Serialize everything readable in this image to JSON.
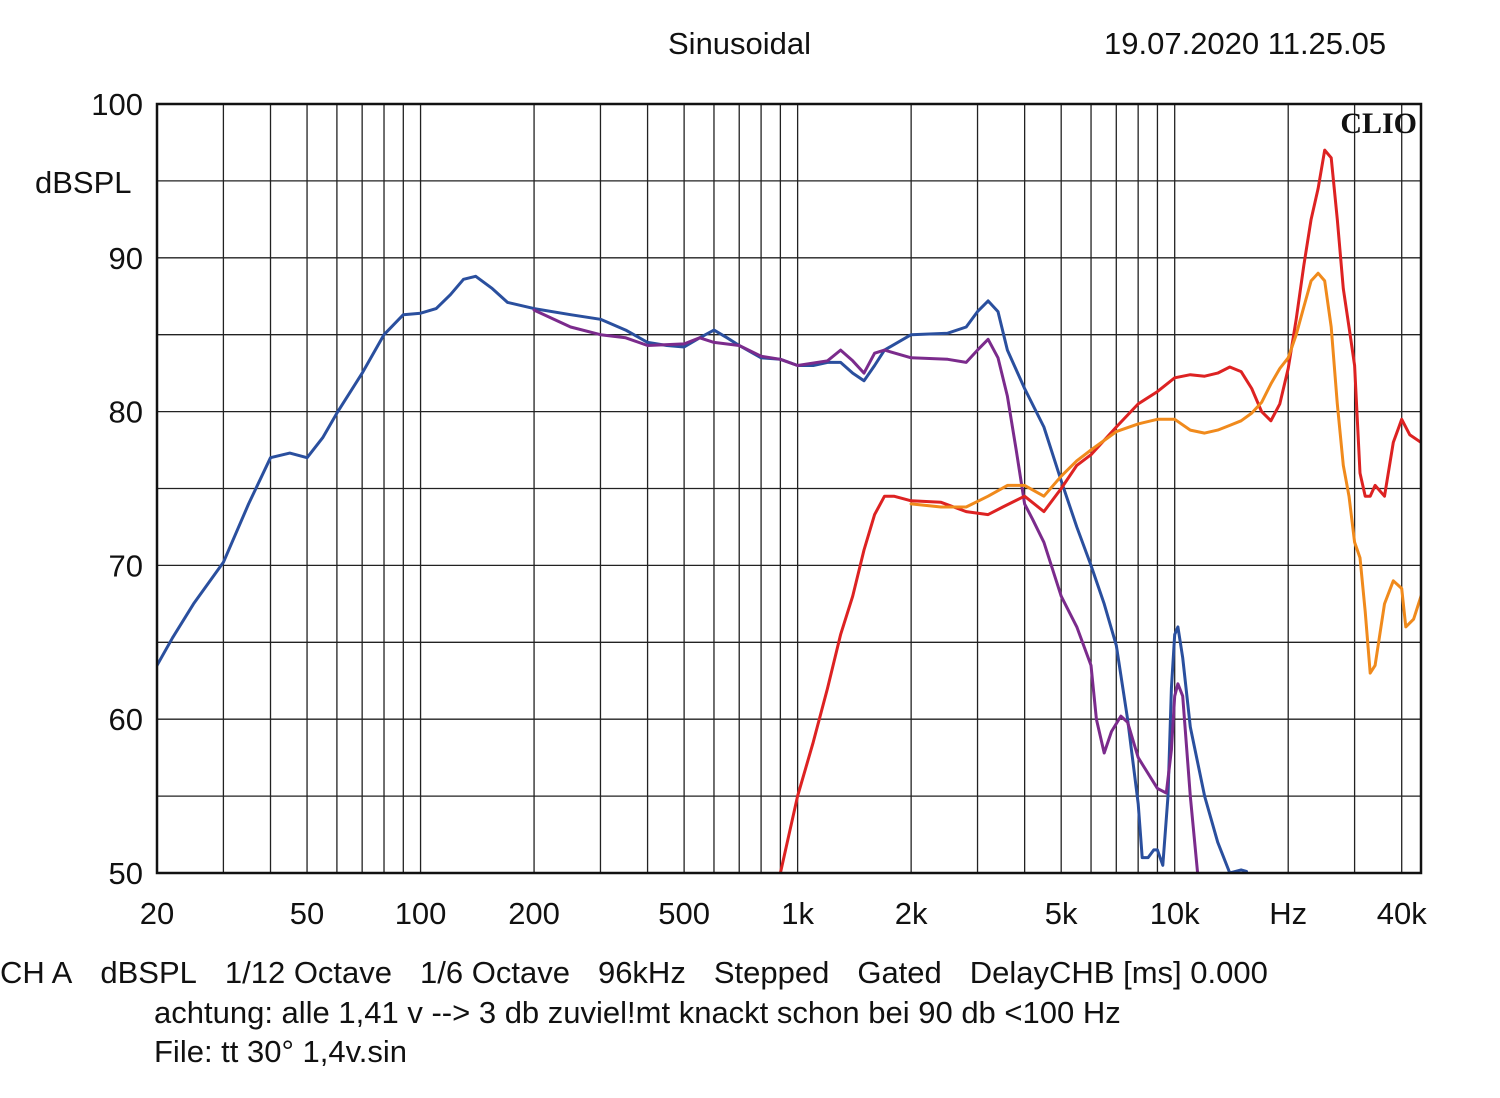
{
  "header": {
    "mode": "Sinusoidal",
    "datetime": "19.07.2020 11.25.05"
  },
  "brand": "CLIO",
  "chart_data": {
    "type": "line",
    "xscale": "log",
    "xlim": [
      20,
      45000
    ],
    "ylim": [
      50,
      100
    ],
    "ylabel": "dBSPL",
    "yticks": [
      {
        "value": 100,
        "label": "100"
      },
      {
        "value": 90,
        "label": "90"
      },
      {
        "value": 80,
        "label": "80"
      },
      {
        "value": 70,
        "label": "70"
      },
      {
        "value": 60,
        "label": "60"
      },
      {
        "value": 50,
        "label": "50"
      }
    ],
    "xticks": [
      {
        "value": 20,
        "label": "20"
      },
      {
        "value": 50,
        "label": "50"
      },
      {
        "value": 100,
        "label": "100"
      },
      {
        "value": 200,
        "label": "200"
      },
      {
        "value": 500,
        "label": "500"
      },
      {
        "value": 1000,
        "label": "1k"
      },
      {
        "value": 2000,
        "label": "2k"
      },
      {
        "value": 5000,
        "label": "5k"
      },
      {
        "value": 10000,
        "label": "10k"
      },
      {
        "value": 20000,
        "label": "Hz"
      },
      {
        "value": 40000,
        "label": "40k"
      }
    ],
    "grid": true,
    "series": [
      {
        "color": "#2a4f9e",
        "points": [
          [
            20,
            63.5
          ],
          [
            22,
            65.3
          ],
          [
            25,
            67.5
          ],
          [
            30,
            70.2
          ],
          [
            35,
            74
          ],
          [
            40,
            77
          ],
          [
            45,
            77.3
          ],
          [
            50,
            77
          ],
          [
            55,
            78.3
          ],
          [
            60,
            79.9
          ],
          [
            70,
            82.5
          ],
          [
            80,
            85
          ],
          [
            90,
            86.3
          ],
          [
            100,
            86.4
          ],
          [
            110,
            86.7
          ],
          [
            120,
            87.6
          ],
          [
            130,
            88.6
          ],
          [
            140,
            88.8
          ],
          [
            155,
            88
          ],
          [
            170,
            87.1
          ],
          [
            200,
            86.7
          ],
          [
            250,
            86.3
          ],
          [
            300,
            86
          ],
          [
            350,
            85.3
          ],
          [
            400,
            84.5
          ],
          [
            450,
            84.3
          ],
          [
            500,
            84.2
          ],
          [
            550,
            84.8
          ],
          [
            600,
            85.3
          ],
          [
            650,
            84.8
          ],
          [
            700,
            84.3
          ],
          [
            800,
            83.5
          ],
          [
            900,
            83.4
          ],
          [
            1000,
            83
          ],
          [
            1100,
            83
          ],
          [
            1200,
            83.2
          ],
          [
            1300,
            83.2
          ],
          [
            1400,
            82.5
          ],
          [
            1500,
            82
          ],
          [
            1600,
            83
          ],
          [
            1700,
            84
          ],
          [
            2000,
            85
          ],
          [
            2500,
            85.1
          ],
          [
            2800,
            85.5
          ],
          [
            3000,
            86.5
          ],
          [
            3200,
            87.2
          ],
          [
            3400,
            86.5
          ],
          [
            3600,
            84
          ],
          [
            4000,
            81.5
          ],
          [
            4500,
            79
          ],
          [
            5000,
            75.5
          ],
          [
            5500,
            72.5
          ],
          [
            6000,
            70
          ],
          [
            6500,
            67.5
          ],
          [
            7000,
            64.8
          ],
          [
            7500,
            60
          ],
          [
            8000,
            54.5
          ],
          [
            8200,
            51
          ],
          [
            8500,
            51
          ],
          [
            8800,
            51.5
          ],
          [
            9000,
            51.5
          ],
          [
            9300,
            50.5
          ],
          [
            9600,
            55
          ],
          [
            9800,
            62
          ],
          [
            10000,
            65.5
          ],
          [
            10200,
            66
          ],
          [
            10500,
            64
          ],
          [
            11000,
            59.5
          ],
          [
            12000,
            55
          ],
          [
            13000,
            52
          ],
          [
            14000,
            50
          ],
          [
            15000,
            50.2
          ],
          [
            15500,
            50.1
          ]
        ]
      },
      {
        "color": "#7b2b8c",
        "points": [
          [
            200,
            86.6
          ],
          [
            250,
            85.5
          ],
          [
            300,
            85
          ],
          [
            350,
            84.8
          ],
          [
            400,
            84.3
          ],
          [
            500,
            84.4
          ],
          [
            550,
            84.8
          ],
          [
            600,
            84.5
          ],
          [
            700,
            84.3
          ],
          [
            800,
            83.6
          ],
          [
            900,
            83.4
          ],
          [
            1000,
            83
          ],
          [
            1200,
            83.3
          ],
          [
            1300,
            84
          ],
          [
            1400,
            83.3
          ],
          [
            1500,
            82.5
          ],
          [
            1600,
            83.8
          ],
          [
            1700,
            84
          ],
          [
            2000,
            83.5
          ],
          [
            2500,
            83.4
          ],
          [
            2800,
            83.2
          ],
          [
            3000,
            84
          ],
          [
            3200,
            84.7
          ],
          [
            3400,
            83.5
          ],
          [
            3600,
            81
          ],
          [
            3800,
            77.5
          ],
          [
            4000,
            74
          ],
          [
            4200,
            73
          ],
          [
            4500,
            71.5
          ],
          [
            5000,
            68
          ],
          [
            5500,
            66
          ],
          [
            6000,
            63.5
          ],
          [
            6200,
            60
          ],
          [
            6500,
            57.8
          ],
          [
            6800,
            59.2
          ],
          [
            7200,
            60.2
          ],
          [
            7500,
            59.8
          ],
          [
            8000,
            57.5
          ],
          [
            9000,
            55.5
          ],
          [
            9500,
            55.2
          ],
          [
            9800,
            58
          ],
          [
            10000,
            61.5
          ],
          [
            10200,
            62.3
          ],
          [
            10500,
            61.5
          ],
          [
            11000,
            55
          ],
          [
            11500,
            50
          ]
        ]
      },
      {
        "color": "#dd2222",
        "points": [
          [
            900,
            50
          ],
          [
            1000,
            55
          ],
          [
            1100,
            58.5
          ],
          [
            1200,
            62
          ],
          [
            1300,
            65.5
          ],
          [
            1400,
            68
          ],
          [
            1500,
            71
          ],
          [
            1600,
            73.3
          ],
          [
            1700,
            74.5
          ],
          [
            1800,
            74.5
          ],
          [
            2000,
            74.2
          ],
          [
            2400,
            74.1
          ],
          [
            2800,
            73.5
          ],
          [
            3200,
            73.3
          ],
          [
            3500,
            73.8
          ],
          [
            4000,
            74.5
          ],
          [
            4500,
            73.5
          ],
          [
            5000,
            75
          ],
          [
            5500,
            76.5
          ],
          [
            6000,
            77.2
          ],
          [
            7000,
            79
          ],
          [
            8000,
            80.5
          ],
          [
            9000,
            81.3
          ],
          [
            10000,
            82.2
          ],
          [
            11000,
            82.4
          ],
          [
            12000,
            82.3
          ],
          [
            13000,
            82.5
          ],
          [
            14000,
            82.9
          ],
          [
            15000,
            82.6
          ],
          [
            16000,
            81.5
          ],
          [
            17000,
            80
          ],
          [
            18000,
            79.4
          ],
          [
            19000,
            80.5
          ],
          [
            20000,
            82.8
          ],
          [
            21000,
            86
          ],
          [
            22000,
            89.5
          ],
          [
            23000,
            92.5
          ],
          [
            24000,
            94.5
          ],
          [
            25000,
            97
          ],
          [
            26000,
            96.5
          ],
          [
            27000,
            92.5
          ],
          [
            28000,
            88
          ],
          [
            29000,
            85.5
          ],
          [
            30000,
            83
          ],
          [
            31000,
            76
          ],
          [
            32000,
            74.5
          ],
          [
            33000,
            74.5
          ],
          [
            34000,
            75.2
          ],
          [
            36000,
            74.5
          ],
          [
            38000,
            78
          ],
          [
            40000,
            79.5
          ],
          [
            42000,
            78.5
          ],
          [
            45000,
            78
          ]
        ]
      },
      {
        "color": "#f08a1c",
        "points": [
          [
            2000,
            74
          ],
          [
            2400,
            73.8
          ],
          [
            2800,
            73.8
          ],
          [
            3200,
            74.5
          ],
          [
            3600,
            75.2
          ],
          [
            4000,
            75.2
          ],
          [
            4500,
            74.5
          ],
          [
            5000,
            75.8
          ],
          [
            5500,
            76.8
          ],
          [
            6000,
            77.5
          ],
          [
            7000,
            78.7
          ],
          [
            8000,
            79.2
          ],
          [
            9000,
            79.5
          ],
          [
            10000,
            79.5
          ],
          [
            11000,
            78.8
          ],
          [
            12000,
            78.6
          ],
          [
            13000,
            78.8
          ],
          [
            14000,
            79.1
          ],
          [
            15000,
            79.4
          ],
          [
            16000,
            79.9
          ],
          [
            17000,
            80.6
          ],
          [
            18000,
            81.8
          ],
          [
            19000,
            82.8
          ],
          [
            20000,
            83.5
          ],
          [
            21000,
            85
          ],
          [
            22000,
            86.8
          ],
          [
            23000,
            88.5
          ],
          [
            24000,
            89
          ],
          [
            25000,
            88.5
          ],
          [
            26000,
            85.5
          ],
          [
            27000,
            80.5
          ],
          [
            28000,
            76.5
          ],
          [
            29000,
            74.5
          ],
          [
            30000,
            71.5
          ],
          [
            31000,
            70.5
          ],
          [
            32000,
            67
          ],
          [
            33000,
            63
          ],
          [
            34000,
            63.5
          ],
          [
            35000,
            65.5
          ],
          [
            36000,
            67.5
          ],
          [
            38000,
            69
          ],
          [
            40000,
            68.5
          ],
          [
            41000,
            66
          ],
          [
            43000,
            66.5
          ],
          [
            45000,
            68
          ]
        ]
      }
    ]
  },
  "footer": {
    "ch": "CH A",
    "unit": "dBSPL",
    "smoothing": "1/12 Octave",
    "resolution": "1/6 Octave",
    "rate": "96kHz",
    "mode": "Stepped",
    "gate": "Gated",
    "delay": "DelayCHB [ms] 0.000",
    "note": "achtung: alle 1,41 v --> 3 db zuviel!mt knackt schon bei 90 db <100 Hz",
    "file": "File: tt 30°  1,4v.sin"
  }
}
